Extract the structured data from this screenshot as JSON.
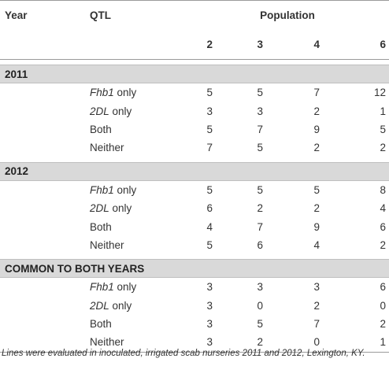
{
  "header": {
    "year": "Year",
    "qtl": "QTL",
    "population": "Population",
    "pops": [
      "2",
      "3",
      "4",
      "6"
    ]
  },
  "sections": [
    {
      "title": "2011",
      "rows": [
        {
          "qtl_italic": "Fhb1",
          "qtl_rest": " only",
          "values": [
            "5",
            "5",
            "7",
            "12"
          ]
        },
        {
          "qtl_italic": "2DL",
          "qtl_rest": " only",
          "values": [
            "3",
            "3",
            "2",
            "1"
          ]
        },
        {
          "qtl_italic": "",
          "qtl_rest": "Both",
          "values": [
            "5",
            "7",
            "9",
            "5"
          ]
        },
        {
          "qtl_italic": "",
          "qtl_rest": "Neither",
          "values": [
            "7",
            "5",
            "2",
            "2"
          ]
        }
      ]
    },
    {
      "title": "2012",
      "rows": [
        {
          "qtl_italic": "Fhb1",
          "qtl_rest": " only",
          "values": [
            "5",
            "5",
            "5",
            "8"
          ]
        },
        {
          "qtl_italic": "2DL",
          "qtl_rest": " only",
          "values": [
            "6",
            "2",
            "2",
            "4"
          ]
        },
        {
          "qtl_italic": "",
          "qtl_rest": "Both",
          "values": [
            "4",
            "7",
            "9",
            "6"
          ]
        },
        {
          "qtl_italic": "",
          "qtl_rest": "Neither",
          "values": [
            "5",
            "6",
            "4",
            "2"
          ]
        }
      ]
    },
    {
      "title": "COMMON TO BOTH YEARS",
      "rows": [
        {
          "qtl_italic": "Fhb1",
          "qtl_rest": " only",
          "values": [
            "3",
            "3",
            "3",
            "6"
          ]
        },
        {
          "qtl_italic": "2DL",
          "qtl_rest": " only",
          "values": [
            "3",
            "0",
            "2",
            "0"
          ]
        },
        {
          "qtl_italic": "",
          "qtl_rest": "Both",
          "values": [
            "3",
            "5",
            "7",
            "2"
          ]
        },
        {
          "qtl_italic": "",
          "qtl_rest": "Neither",
          "values": [
            "3",
            "2",
            "0",
            "1"
          ]
        }
      ]
    }
  ],
  "footnote": "Lines were evaluated in inoculated, irrigated scab nurseries 2011 and 2012, Lexington, KY."
}
